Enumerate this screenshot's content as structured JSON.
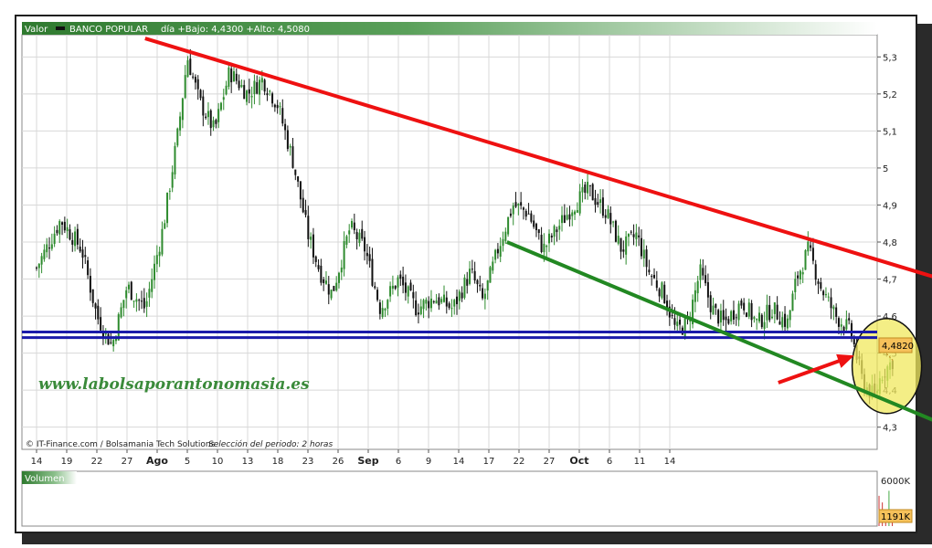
{
  "header": {
    "series_label": "Valor",
    "legend_name": "BANCO POPULAR",
    "stats": "día +Bajo: 4,4300 +Alto: 4,5080"
  },
  "watermark": "www.labolsaporantonomasia.es",
  "source": {
    "credit": "© IT-Finance.com / Bolsamania Tech Solutions",
    "period": "Selección del periodo: 2 horas"
  },
  "price_tag": "4,4820",
  "volume_panel": {
    "label": "Volumen",
    "max_label": "6000K",
    "last_label": "1191K"
  },
  "chart_data": {
    "type": "candlestick",
    "y_ticks": [
      {
        "v": 5.3,
        "label": "5,3"
      },
      {
        "v": 5.2,
        "label": "5,2"
      },
      {
        "v": 5.1,
        "label": "5,1"
      },
      {
        "v": 5.0,
        "label": "5"
      },
      {
        "v": 4.9,
        "label": "4,9"
      },
      {
        "v": 4.8,
        "label": "4,8"
      },
      {
        "v": 4.7,
        "label": "4,7"
      },
      {
        "v": 4.6,
        "label": "4,6"
      },
      {
        "v": 4.5,
        "label": "4,5"
      },
      {
        "v": 4.4,
        "label": "4,4"
      },
      {
        "v": 4.3,
        "label": "4,3"
      }
    ],
    "ylim": [
      4.24,
      5.36
    ],
    "x_ticks": [
      {
        "label": "14",
        "bold": false
      },
      {
        "label": "19",
        "bold": false
      },
      {
        "label": "22",
        "bold": false
      },
      {
        "label": "27",
        "bold": false
      },
      {
        "label": "Ago",
        "bold": true
      },
      {
        "label": "5",
        "bold": false
      },
      {
        "label": "10",
        "bold": false
      },
      {
        "label": "13",
        "bold": false
      },
      {
        "label": "18",
        "bold": false
      },
      {
        "label": "23",
        "bold": false
      },
      {
        "label": "26",
        "bold": false
      },
      {
        "label": "Sep",
        "bold": true
      },
      {
        "label": "6",
        "bold": false
      },
      {
        "label": "9",
        "bold": false
      },
      {
        "label": "14",
        "bold": false
      },
      {
        "label": "17",
        "bold": false
      },
      {
        "label": "22",
        "bold": false
      },
      {
        "label": "27",
        "bold": false
      },
      {
        "label": "Oct",
        "bold": true
      },
      {
        "label": "6",
        "bold": false
      },
      {
        "label": "11",
        "bold": false
      },
      {
        "label": "14",
        "bold": false
      }
    ],
    "price_path": [
      [
        0.0,
        4.73
      ],
      [
        0.8,
        4.86
      ],
      [
        1.5,
        4.78
      ],
      [
        2.0,
        4.6
      ],
      [
        2.5,
        4.52
      ],
      [
        3.0,
        4.68
      ],
      [
        3.6,
        4.62
      ],
      [
        4.2,
        4.84
      ],
      [
        4.7,
        5.1
      ],
      [
        5.0,
        5.3
      ],
      [
        5.4,
        5.18
      ],
      [
        5.9,
        5.1
      ],
      [
        6.4,
        5.26
      ],
      [
        7.0,
        5.2
      ],
      [
        7.5,
        5.24
      ],
      [
        8.0,
        5.17
      ],
      [
        8.5,
        5.02
      ],
      [
        9.0,
        4.82
      ],
      [
        9.4,
        4.72
      ],
      [
        9.8,
        4.66
      ],
      [
        10.4,
        4.84
      ],
      [
        10.9,
        4.78
      ],
      [
        11.4,
        4.62
      ],
      [
        12.0,
        4.7
      ],
      [
        12.6,
        4.62
      ],
      [
        13.2,
        4.65
      ],
      [
        13.8,
        4.62
      ],
      [
        14.4,
        4.72
      ],
      [
        14.8,
        4.64
      ],
      [
        15.3,
        4.78
      ],
      [
        15.8,
        4.9
      ],
      [
        16.3,
        4.88
      ],
      [
        16.8,
        4.78
      ],
      [
        17.3,
        4.84
      ],
      [
        17.8,
        4.9
      ],
      [
        18.3,
        4.94
      ],
      [
        18.9,
        4.88
      ],
      [
        19.4,
        4.78
      ],
      [
        19.9,
        4.82
      ],
      [
        20.3,
        4.72
      ],
      [
        20.8,
        4.66
      ],
      [
        21.2,
        4.56
      ],
      [
        21.6,
        4.58
      ],
      [
        22.0,
        4.72
      ],
      [
        22.4,
        4.62
      ],
      [
        22.8,
        4.58
      ],
      [
        23.4,
        4.64
      ],
      [
        23.9,
        4.58
      ],
      [
        24.4,
        4.62
      ],
      [
        24.9,
        4.58
      ],
      [
        25.2,
        4.7
      ],
      [
        25.6,
        4.78
      ],
      [
        26.0,
        4.68
      ],
      [
        26.5,
        4.6
      ],
      [
        27.0,
        4.56
      ],
      [
        27.4,
        4.42
      ],
      [
        27.8,
        4.38
      ],
      [
        28.0,
        4.44
      ],
      [
        28.4,
        4.48
      ]
    ],
    "volume_max_k": 6000,
    "volume_last_k": 1191,
    "annotations": {
      "resistance_line": {
        "from": [
          3.6,
          5.35
        ],
        "to": [
          30.0,
          4.7
        ],
        "color": "#ee1111"
      },
      "support_line": {
        "from": [
          15.6,
          4.8
        ],
        "to": [
          30.0,
          4.31
        ],
        "color": "#228822"
      },
      "horizontal_support": [
        4.557,
        4.542
      ],
      "horizontal_color": "#1a1aaa",
      "circle_center": [
        28.2,
        4.465
      ],
      "arrow": {
        "from": [
          24.6,
          4.42
        ],
        "to": [
          27.0,
          4.49
        ],
        "color": "#ee1111"
      }
    },
    "colors": {
      "up": "#2e8b2e",
      "down": "#111111",
      "header": "#2f7a2f",
      "badge": "#f6c15a",
      "circle": "#f0e85e"
    }
  }
}
